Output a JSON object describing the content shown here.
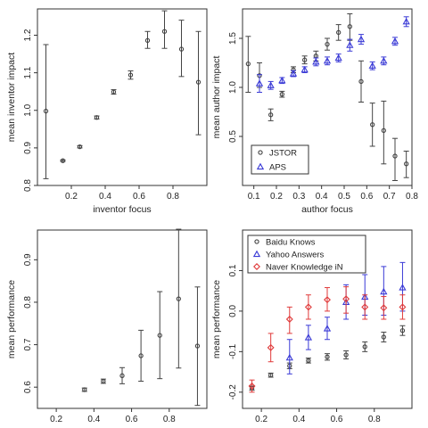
{
  "chart_data": [
    {
      "type": "scatter",
      "xlabel": "inventor focus",
      "ylabel": "mean inventor impact",
      "xlim": [
        0.0,
        1.0
      ],
      "ylim": [
        0.8,
        1.27
      ],
      "xticks": [
        0.2,
        0.4,
        0.6,
        0.8
      ],
      "yticks": [
        0.8,
        0.9,
        1.0,
        1.1,
        1.2
      ],
      "series": [
        {
          "name": "",
          "color": "#444444",
          "marker": "circle",
          "x": [
            0.05,
            0.15,
            0.25,
            0.35,
            0.45,
            0.55,
            0.65,
            0.75,
            0.85,
            0.95
          ],
          "y": [
            0.998,
            0.866,
            0.903,
            0.981,
            1.049,
            1.094,
            1.186,
            1.21,
            1.163,
            1.075
          ],
          "yerr_low": [
            0.818,
            0.864,
            0.9,
            0.977,
            1.043,
            1.083,
            1.165,
            1.165,
            1.09,
            0.935
          ],
          "yerr_high": [
            1.175,
            0.868,
            0.906,
            0.985,
            1.055,
            1.105,
            1.21,
            1.265,
            1.24,
            1.21
          ]
        }
      ]
    },
    {
      "type": "scatter",
      "xlabel": "author focus",
      "ylabel": "mean author impact",
      "xlim": [
        0.05,
        0.8
      ],
      "ylim": [
        0.0,
        1.8
      ],
      "xticks": [
        0.1,
        0.2,
        0.3,
        0.4,
        0.5,
        0.6,
        0.7,
        0.8
      ],
      "xtick_labels": [
        "0.1",
        "0.2",
        "0.3",
        "0.4",
        "0.5",
        "0.6",
        "0.7",
        "0.8"
      ],
      "yticks": [
        0.5,
        1.0,
        1.5
      ],
      "legend": "bottom-left",
      "series": [
        {
          "name": "JSTOR",
          "color": "#444444",
          "marker": "circle",
          "x": [
            0.075,
            0.125,
            0.175,
            0.225,
            0.275,
            0.325,
            0.375,
            0.425,
            0.475,
            0.525,
            0.575,
            0.625,
            0.675,
            0.725,
            0.775
          ],
          "y": [
            1.24,
            1.12,
            0.72,
            0.93,
            1.18,
            1.28,
            1.32,
            1.44,
            1.56,
            1.62,
            1.06,
            0.62,
            0.56,
            0.3,
            0.22
          ],
          "yerr_low": [
            0.95,
            1.0,
            0.66,
            0.9,
            1.15,
            1.24,
            1.27,
            1.38,
            1.48,
            1.48,
            0.85,
            0.4,
            0.22,
            0.05,
            0.08
          ],
          "yerr_high": [
            1.52,
            1.25,
            0.78,
            0.96,
            1.21,
            1.32,
            1.37,
            1.5,
            1.64,
            1.75,
            1.27,
            0.84,
            0.86,
            0.48,
            0.35
          ]
        },
        {
          "name": "APS",
          "color": "#3a3ad6",
          "marker": "triangle",
          "x": [
            0.125,
            0.175,
            0.225,
            0.275,
            0.325,
            0.375,
            0.425,
            0.475,
            0.525,
            0.575,
            0.625,
            0.675,
            0.725,
            0.775
          ],
          "y": [
            1.04,
            1.02,
            1.07,
            1.14,
            1.18,
            1.26,
            1.27,
            1.3,
            1.43,
            1.49,
            1.22,
            1.27,
            1.47,
            1.67
          ],
          "yerr_low": [
            0.95,
            0.98,
            1.04,
            1.11,
            1.15,
            1.22,
            1.23,
            1.26,
            1.37,
            1.44,
            1.18,
            1.23,
            1.43,
            1.62
          ],
          "yerr_high": [
            1.13,
            1.06,
            1.1,
            1.17,
            1.21,
            1.3,
            1.31,
            1.34,
            1.49,
            1.54,
            1.26,
            1.31,
            1.51,
            1.72
          ]
        }
      ]
    },
    {
      "type": "scatter",
      "xlabel": "wikipedian focus",
      "ylabel": "mean performance",
      "xlim": [
        0.1,
        1.0
      ],
      "ylim": [
        0.55,
        0.97
      ],
      "xticks": [
        0.2,
        0.4,
        0.6,
        0.8
      ],
      "yticks": [
        0.6,
        0.7,
        0.8,
        0.9
      ],
      "series": [
        {
          "name": "",
          "color": "#444444",
          "marker": "circle",
          "x": [
            0.35,
            0.45,
            0.55,
            0.65,
            0.75,
            0.85,
            0.95
          ],
          "y": [
            0.594,
            0.614,
            0.627,
            0.674,
            0.722,
            0.808,
            0.697
          ],
          "yerr_low": [
            0.59,
            0.609,
            0.608,
            0.614,
            0.62,
            0.645,
            0.557
          ],
          "yerr_high": [
            0.598,
            0.619,
            0.646,
            0.734,
            0.825,
            0.972,
            0.836
          ]
        }
      ]
    },
    {
      "type": "scatter",
      "xlabel": "answerer focus",
      "ylabel": "mean performance",
      "xlim": [
        0.1,
        1.0
      ],
      "ylim": [
        -0.24,
        0.2
      ],
      "xticks": [
        0.2,
        0.4,
        0.6,
        0.8
      ],
      "yticks": [
        -0.2,
        -0.1,
        0.0,
        0.1
      ],
      "ytick_labels": [
        "-0.2",
        "-0.1",
        "0.0",
        "0.1"
      ],
      "legend": "top-left",
      "series": [
        {
          "name": "Baidu Knows",
          "color": "#444444",
          "marker": "circle",
          "x": [
            0.15,
            0.25,
            0.35,
            0.45,
            0.55,
            0.65,
            0.75,
            0.85,
            0.95
          ],
          "y": [
            -0.19,
            -0.158,
            -0.135,
            -0.122,
            -0.113,
            -0.108,
            -0.088,
            -0.064,
            -0.048
          ],
          "yerr_low": [
            -0.195,
            -0.163,
            -0.142,
            -0.128,
            -0.121,
            -0.118,
            -0.1,
            -0.076,
            -0.06
          ],
          "yerr_high": [
            -0.185,
            -0.153,
            -0.128,
            -0.116,
            -0.105,
            -0.098,
            -0.076,
            -0.052,
            -0.036
          ]
        },
        {
          "name": "Yahoo Answers",
          "color": "#3a3ad6",
          "marker": "triangle",
          "x": [
            0.35,
            0.45,
            0.55,
            0.65,
            0.75,
            0.85,
            0.95
          ],
          "y": [
            -0.115,
            -0.065,
            -0.043,
            0.022,
            0.035,
            0.048,
            0.058
          ],
          "yerr_low": [
            -0.155,
            -0.095,
            -0.07,
            -0.02,
            -0.01,
            -0.01,
            0.0
          ],
          "yerr_high": [
            -0.07,
            -0.035,
            -0.015,
            0.065,
            0.09,
            0.11,
            0.12
          ]
        },
        {
          "name": "Naver Knowledge iN",
          "color": "#e03a3a",
          "marker": "diamond",
          "x": [
            0.15,
            0.25,
            0.35,
            0.45,
            0.55,
            0.65,
            0.75,
            0.85,
            0.95
          ],
          "y": [
            -0.185,
            -0.09,
            -0.02,
            0.01,
            0.028,
            0.03,
            0.01,
            0.008,
            0.01
          ],
          "yerr_low": [
            -0.2,
            -0.125,
            -0.055,
            -0.02,
            0.0,
            -0.005,
            -0.02,
            -0.02,
            -0.02
          ],
          "yerr_high": [
            -0.17,
            -0.055,
            0.01,
            0.04,
            0.058,
            0.06,
            0.04,
            0.036,
            0.04
          ]
        }
      ]
    }
  ]
}
